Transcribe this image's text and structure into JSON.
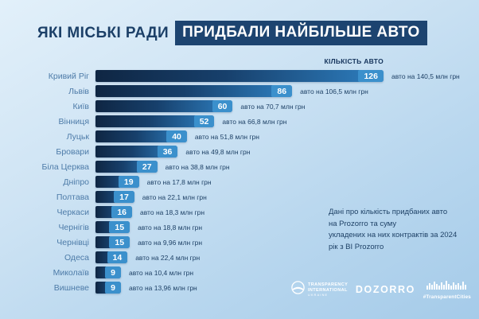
{
  "title": {
    "plain": "ЯКІ МІСЬКІ РАДИ",
    "highlighted": "ПРИДБАЛИ НАЙБІЛЬШЕ АВТО"
  },
  "chart_data": {
    "type": "bar",
    "orientation": "horizontal",
    "title": "ЯКІ МІСЬКІ РАДИ ПРИДБАЛИ НАЙБІЛЬШЕ АВТО",
    "value_axis_label": "КІЛЬКІСТЬ АВТО",
    "categories": [
      "Кривий Ріг",
      "Львів",
      "Київ",
      "Вінниця",
      "Луцьк",
      "Бровари",
      "Біла Церква",
      "Дніпро",
      "Полтава",
      "Черкаси",
      "Чернігів",
      "Чернівці",
      "Одеса",
      "Миколаїв",
      "Вишневе"
    ],
    "values": [
      126,
      86,
      60,
      52,
      40,
      36,
      27,
      19,
      17,
      16,
      15,
      15,
      14,
      9,
      9
    ],
    "annotations": [
      "авто на 140,5 млн грн",
      "авто на 106,5 млн грн",
      "авто на 70,7 млн грн",
      "авто на 66,8 млн грн",
      "авто на 51,8 млн грн",
      "авто на 49,8 млн грн",
      "авто на 38,8 млн грн",
      "авто на 17,8 млн грн",
      "авто на 22,1 млн грн",
      "авто на 18,3 млн грн",
      "авто на 18,8 млн грн",
      "авто на 9,96 млн грн",
      "авто на 22,4 млн грн",
      "авто на 10,4 млн грн",
      "авто на 13,96 млн грн"
    ],
    "xlim": [
      0,
      126
    ],
    "grid": false,
    "legend": false
  },
  "note": {
    "text": "Дані про кількість придбаних авто\nна Prozorro та суму\nукладених на них контрактів за 2024\nрік з BI Prozorro"
  },
  "footer": {
    "ti_logo": {
      "line1": "TRANSPARENCY",
      "line2": "INTERNATIONAL",
      "line3": "UKRAINE"
    },
    "dozorro_label": "DOZORRO",
    "cities_label": "#TransparentCities"
  },
  "colors": {
    "background_top": "#e2f0fa",
    "background_bottom": "#a5cbe9",
    "accent_navy": "#1d4470",
    "bar_dark": "#0f2643",
    "bar_light": "#2e7fc0",
    "bar_cap": "#3b90cc",
    "city_label_blue": "#4d7ba8",
    "text_navy": "#1e4166",
    "logo_white": "#ffffff"
  }
}
